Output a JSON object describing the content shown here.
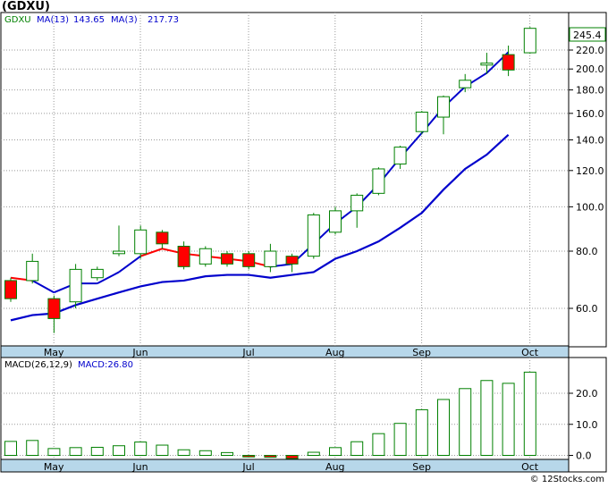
{
  "title": "(GDXU)",
  "credit": "© 12Stocks.com",
  "price_legend": {
    "ticker": "GDXU",
    "ma13_label": "MA(13)",
    "ma13_value": "143.65",
    "ma3_label": "MA(3)",
    "ma3_value": "217.73"
  },
  "macd_legend": {
    "label": "MACD(26,12,9)",
    "value_label": "MACD:26.80"
  },
  "last_price_label": "245.4",
  "colors": {
    "up": "#ffffff",
    "down": "#ff0000",
    "candle_border": "#008000",
    "ma13": "#0000cc",
    "ma3_up": "#0000cc",
    "ma3_down": "#ff0000",
    "axis_band": "#b7d7ea",
    "grid": "#999999",
    "badge_border": "#008000"
  },
  "chart_data": [
    {
      "type": "candlestick",
      "title": "",
      "y_scale": "log",
      "y_ticks": [
        60,
        80,
        100,
        120,
        140,
        160,
        180,
        200,
        220
      ],
      "x_labels": [
        "May",
        "Jun",
        "Jul",
        "Aug",
        "Sep",
        "Oct"
      ],
      "candles": [
        {
          "o": 69,
          "h": 70,
          "l": 62,
          "c": 63
        },
        {
          "o": 69,
          "h": 79,
          "l": 68,
          "c": 76
        },
        {
          "o": 63,
          "h": 64,
          "l": 53,
          "c": 57
        },
        {
          "o": 62,
          "h": 75,
          "l": 60,
          "c": 73
        },
        {
          "o": 70,
          "h": 74,
          "l": 69,
          "c": 73
        },
        {
          "o": 79,
          "h": 91,
          "l": 78,
          "c": 80
        },
        {
          "o": 79,
          "h": 91,
          "l": 77,
          "c": 89
        },
        {
          "o": 88,
          "h": 89,
          "l": 81,
          "c": 83
        },
        {
          "o": 82,
          "h": 84,
          "l": 73,
          "c": 74
        },
        {
          "o": 75,
          "h": 82,
          "l": 74,
          "c": 81
        },
        {
          "o": 79,
          "h": 80,
          "l": 74,
          "c": 75
        },
        {
          "o": 79,
          "h": 80,
          "l": 73,
          "c": 74
        },
        {
          "o": 74,
          "h": 83,
          "l": 72,
          "c": 80
        },
        {
          "o": 78,
          "h": 79,
          "l": 72,
          "c": 75
        },
        {
          "o": 78,
          "h": 97,
          "l": 77,
          "c": 96
        },
        {
          "o": 88,
          "h": 100,
          "l": 87,
          "c": 98
        },
        {
          "o": 98,
          "h": 107,
          "l": 90,
          "c": 106
        },
        {
          "o": 107,
          "h": 122,
          "l": 106,
          "c": 121
        },
        {
          "o": 124,
          "h": 136,
          "l": 121,
          "c": 135
        },
        {
          "o": 146,
          "h": 162,
          "l": 144,
          "c": 161
        },
        {
          "o": 157,
          "h": 175,
          "l": 144,
          "c": 174
        },
        {
          "o": 182,
          "h": 195,
          "l": 178,
          "c": 189
        },
        {
          "o": 204,
          "h": 217,
          "l": 195,
          "c": 206
        },
        {
          "o": 215,
          "h": 225,
          "l": 193,
          "c": 199
        },
        {
          "o": 217,
          "h": 247,
          "l": 216,
          "c": 245.4
        }
      ],
      "ma13": [
        56.5,
        58,
        58.5,
        61,
        63,
        65,
        67,
        68.5,
        69,
        70.5,
        71,
        71,
        70,
        71,
        72,
        77,
        80,
        84,
        90,
        97,
        109,
        121,
        130,
        143.65
      ],
      "ma3": [
        70,
        69,
        65,
        68,
        68,
        72,
        78,
        81,
        79,
        78,
        77,
        76,
        74,
        75,
        83,
        92,
        100,
        112,
        128,
        145,
        165,
        183,
        196,
        217.73
      ],
      "ma3_colors": [
        "down",
        "down",
        "up",
        "up",
        "up",
        "up",
        "up",
        "down",
        "down",
        "down",
        "down",
        "down",
        "down",
        "up",
        "up",
        "up",
        "up",
        "up",
        "up",
        "up",
        "up",
        "up",
        "up",
        "up"
      ]
    },
    {
      "type": "bar",
      "title": "",
      "y_ticks": [
        0.0,
        10.0,
        20.0
      ],
      "ylim": [
        -2,
        30
      ],
      "x_labels": [
        "May",
        "Jun",
        "Jul",
        "Aug",
        "Sep",
        "Oct"
      ],
      "values": [
        4.5,
        4.8,
        2.2,
        2.5,
        2.6,
        3.1,
        4.3,
        3.3,
        1.8,
        1.5,
        0.9,
        -0.5,
        -0.6,
        -1.0,
        1.0,
        2.5,
        4.4,
        7.0,
        10.3,
        14.7,
        18.0,
        21.5,
        24.1,
        23.2,
        26.8
      ]
    }
  ]
}
